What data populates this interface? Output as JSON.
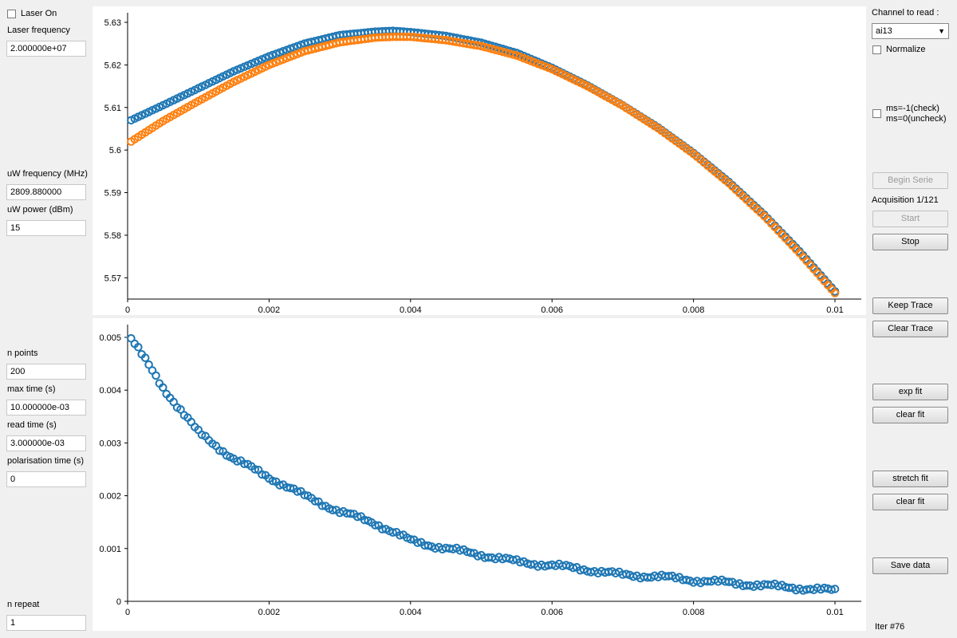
{
  "left_panel": {
    "laser_on_label": "Laser On",
    "laser_frequency_label": "Laser frequency",
    "laser_frequency_value": "2.000000e+07",
    "uw_frequency_label": "uW frequency (MHz)",
    "uw_frequency_value": "2809.880000",
    "uw_power_label": "uW power (dBm)",
    "uw_power_value": "15",
    "n_points_label": "n points",
    "n_points_value": "200",
    "max_time_label": "max time (s)",
    "max_time_value": "10.000000e-03",
    "read_time_label": "read time (s)",
    "read_time_value": "3.000000e-03",
    "polarisation_time_label": "polarisation time (s)",
    "polarisation_time_value": "0",
    "n_repeat_label": "n repeat",
    "n_repeat_value": "1"
  },
  "right_panel": {
    "channel_label": "Channel to read :",
    "channel_selected": "ai13",
    "normalize_label": "Normalize",
    "ms_label_line1": "ms=-1(check)",
    "ms_label_line2": "ms=0(uncheck)",
    "begin_serie_label": "Begin Serie",
    "acquisition_status": "Acquisition 1/121",
    "start_label": "Start",
    "stop_label": "Stop",
    "keep_trace_label": "Keep Trace",
    "clear_trace_label": "Clear Trace",
    "exp_fit_label": "exp fit",
    "clear_fit_label_1": "clear fit",
    "stretch_fit_label": "stretch fit",
    "clear_fit_label_2": "clear fit",
    "save_data_label": "Save data",
    "iteration_status": "Iter #76"
  },
  "colors": {
    "series_blue": "#1f77b4",
    "series_orange": "#ff7f0e"
  },
  "chart_data": [
    {
      "type": "scatter",
      "title": "",
      "xlabel": "",
      "ylabel": "",
      "xlim": [
        0,
        0.01
      ],
      "ylim": [
        5.565,
        5.63
      ],
      "x_ticks": [
        "0",
        "0.002",
        "0.004",
        "0.006",
        "0.008",
        "0.01"
      ],
      "y_ticks": [
        "5.57",
        "5.58",
        "5.59",
        "5.6",
        "5.61",
        "5.62",
        "5.63"
      ],
      "grid": false,
      "series": [
        {
          "color": "#1f77b4",
          "x": [
            5e-05,
            0.0005,
            0.001,
            0.0015,
            0.002,
            0.0025,
            0.003,
            0.0035,
            0.00375,
            0.004,
            0.0045,
            0.005,
            0.0055,
            0.006,
            0.0065,
            0.007,
            0.0075,
            0.008,
            0.0085,
            0.009,
            0.0095,
            0.01
          ],
          "y": [
            5.607,
            5.6105,
            5.6145,
            5.6185,
            5.622,
            5.625,
            5.627,
            5.6278,
            5.628,
            5.6277,
            5.6268,
            5.6252,
            5.6228,
            5.6193,
            5.6152,
            5.6105,
            5.6053,
            5.5993,
            5.5925,
            5.5848,
            5.5762,
            5.5668
          ]
        },
        {
          "color": "#ff7f0e",
          "x": [
            5e-05,
            0.0005,
            0.001,
            0.0015,
            0.002,
            0.0025,
            0.003,
            0.0035,
            0.00375,
            0.004,
            0.0045,
            0.005,
            0.0055,
            0.006,
            0.0065,
            0.007,
            0.0075,
            0.008,
            0.0085,
            0.009,
            0.0095,
            0.01
          ],
          "y": [
            5.602,
            5.6068,
            5.6115,
            5.616,
            5.62,
            5.6232,
            5.6253,
            5.6264,
            5.6266,
            5.6266,
            5.6258,
            5.6244,
            5.6222,
            5.619,
            5.615,
            5.6104,
            5.6051,
            5.5991,
            5.5922,
            5.5845,
            5.5758,
            5.5664
          ]
        }
      ]
    },
    {
      "type": "scatter",
      "title": "",
      "xlabel": "",
      "ylabel": "",
      "xlim": [
        0,
        0.01
      ],
      "ylim": [
        0,
        0.005
      ],
      "x_ticks": [
        "0",
        "0.002",
        "0.004",
        "0.006",
        "0.008",
        "0.01"
      ],
      "y_ticks": [
        "0",
        "0.001",
        "0.002",
        "0.003",
        "0.004",
        "0.005"
      ],
      "grid": false,
      "series": [
        {
          "color": "#1f77b4",
          "x": [
            5e-05,
            0.0005,
            0.001,
            0.0015,
            0.002,
            0.0025,
            0.003,
            0.0035,
            0.004,
            0.0045,
            0.005,
            0.0055,
            0.006,
            0.0065,
            0.007,
            0.0075,
            0.008,
            0.0085,
            0.009,
            0.0095,
            0.01
          ],
          "y": [
            0.00498,
            0.00405,
            0.0032,
            0.0027,
            0.00235,
            0.002,
            0.0017,
            0.00148,
            0.00115,
            0.001,
            0.00088,
            0.00075,
            0.00068,
            0.0006,
            0.0005,
            0.00047,
            0.0004,
            0.00035,
            0.0003,
            0.00025,
            0.0002
          ]
        }
      ]
    }
  ]
}
